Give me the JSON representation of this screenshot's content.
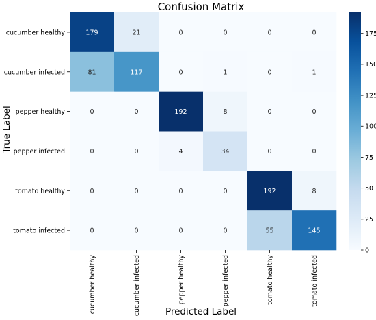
{
  "chart_data": {
    "type": "heatmap",
    "title": "Confusion Matrix",
    "xlabel": "Predicted Label",
    "ylabel": "True Label",
    "x_categories": [
      "cucumber healthy",
      "cucumber infected",
      "pepper healthy",
      "pepper infected",
      "tomato healthy",
      "tomato infected"
    ],
    "y_categories": [
      "cucumber healthy",
      "cucumber infected",
      "pepper healthy",
      "pepper infected",
      "tomato healthy",
      "tomato infected"
    ],
    "values": [
      [
        179,
        21,
        0,
        0,
        0,
        0
      ],
      [
        81,
        117,
        0,
        1,
        0,
        1
      ],
      [
        0,
        0,
        192,
        8,
        0,
        0
      ],
      [
        0,
        0,
        4,
        34,
        0,
        0
      ],
      [
        0,
        0,
        0,
        0,
        192,
        8
      ],
      [
        0,
        0,
        0,
        0,
        55,
        145
      ]
    ],
    "colormap": "Blues",
    "colorbar": {
      "range": [
        0,
        192
      ],
      "ticks": [
        0,
        25,
        50,
        75,
        100,
        125,
        150,
        175
      ]
    },
    "colors": {
      "low": "#f7fbff",
      "high": "#08306b",
      "label_dark": "#262626",
      "label_light": "#ffffff"
    }
  }
}
